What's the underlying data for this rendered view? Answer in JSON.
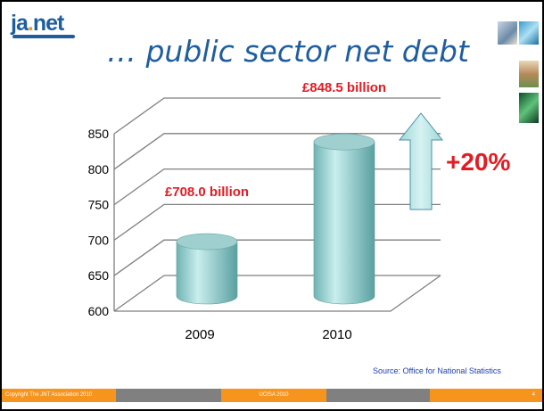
{
  "header": {
    "logo_text_ja": "ja",
    "logo_text_net": "net",
    "title": "… public sector net debt"
  },
  "chart_data": {
    "type": "bar",
    "categories": [
      "2009",
      "2010"
    ],
    "values": [
      708.0,
      848.5
    ],
    "data_labels": [
      "£708.0 billion",
      "£848.5 billion"
    ],
    "ylim": [
      600,
      850
    ],
    "yticks": [
      600,
      650,
      700,
      750,
      800,
      850
    ],
    "grid": true,
    "style": "3d-cylinder",
    "bar_color": "#8fd0d0",
    "title": "",
    "xlabel": "",
    "ylabel": ""
  },
  "annotation": {
    "change_label": "+20%",
    "arrow": "up-arrow-icon",
    "color": "#e31b23"
  },
  "source": "Source: Office for National Statistics",
  "footer": {
    "copyright": "Copyright The JNT Association 2010",
    "event": "UCISA 2010",
    "page": "4"
  },
  "colors": {
    "brand_blue": "#1f5e9e",
    "brand_orange": "#f7941d",
    "footer_gray": "#808080"
  }
}
